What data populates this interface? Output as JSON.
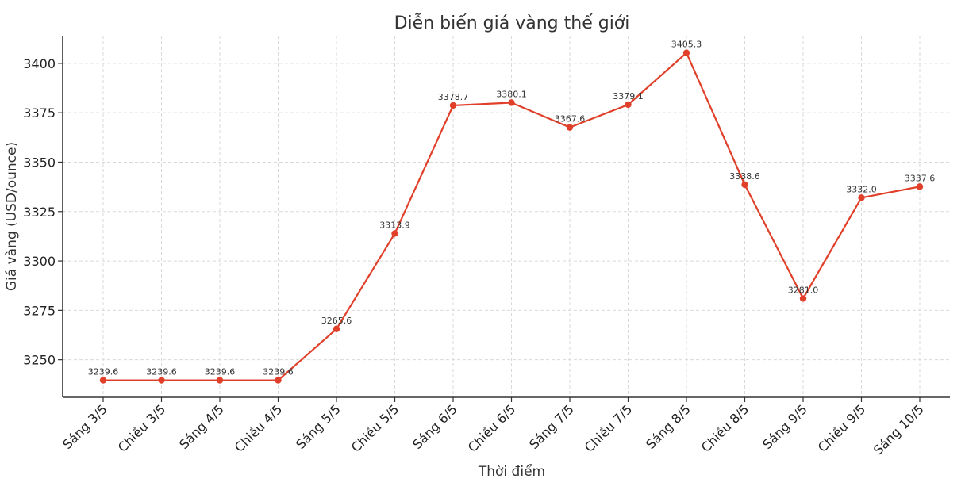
{
  "chart_data": {
    "type": "line",
    "title": "Diễn biến giá vàng thế giới",
    "xlabel": "Thời điểm",
    "ylabel": "Giá vàng (USD/ounce)",
    "categories": [
      "Sáng 3/5",
      "Chiều 3/5",
      "Sáng 4/5",
      "Chiều 4/5",
      "Sáng 5/5",
      "Chiều 5/5",
      "Sáng 6/5",
      "Chiều 6/5",
      "Sáng 7/5",
      "Chiều 7/5",
      "Sáng 8/5",
      "Chiều 8/5",
      "Sáng 9/5",
      "Chiều 9/5",
      "Sáng 10/5"
    ],
    "series": [
      {
        "values": [
          3239.6,
          3239.6,
          3239.6,
          3239.6,
          3265.6,
          3313.9,
          3378.7,
          3380.1,
          3367.6,
          3379.1,
          3405.3,
          3338.6,
          3281.0,
          3332.0,
          3337.6
        ],
        "color": "#e0402a"
      }
    ],
    "yticks": [
      3250,
      3275,
      3300,
      3325,
      3350,
      3375,
      3400
    ],
    "ylim": [
      3231,
      3414
    ],
    "grid": true,
    "data_labels": true
  }
}
